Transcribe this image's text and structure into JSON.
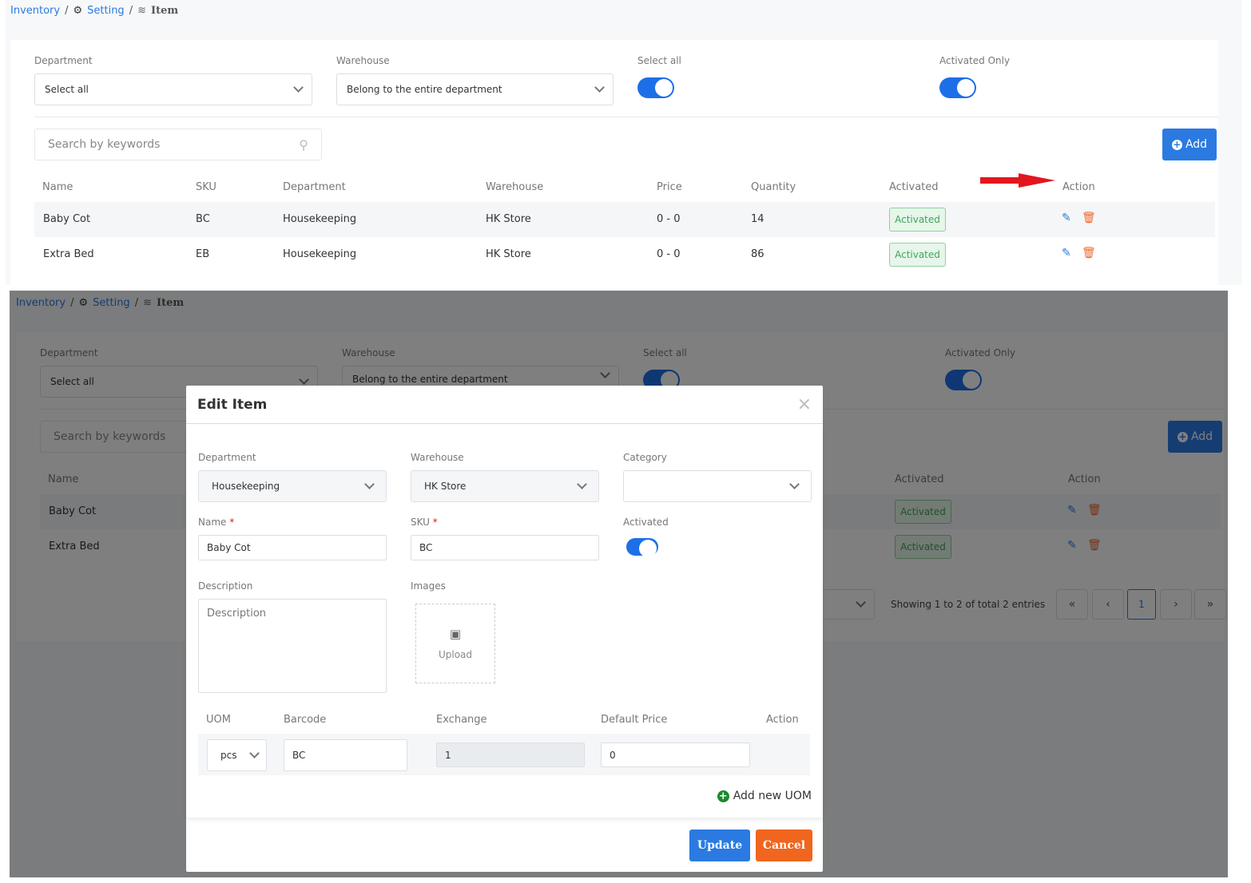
{
  "breadcrumb": {
    "items": [
      "Inventory",
      "Setting",
      "Item"
    ]
  },
  "filters": {
    "department_label": "Department",
    "department_value": "Select all",
    "warehouse_label": "Warehouse",
    "warehouse_value": "Belong to the entire department",
    "select_all_label": "Select all",
    "select_all_on": true,
    "activated_only_label": "Activated Only",
    "activated_only_on": true
  },
  "search": {
    "placeholder": "Search by keywords"
  },
  "toolbar": {
    "add_label": "Add"
  },
  "table": {
    "columns": [
      "Name",
      "SKU",
      "Department",
      "Warehouse",
      "Price",
      "Quantity",
      "Activated",
      "Action"
    ],
    "rows": [
      {
        "name": "Baby Cot",
        "sku": "BC",
        "department": "Housekeeping",
        "warehouse": "HK Store",
        "price": "0 - 0",
        "quantity": "14",
        "activated": "Activated"
      },
      {
        "name": "Extra Bed",
        "sku": "EB",
        "department": "Housekeeping",
        "warehouse": "HK Store",
        "price": "0 - 0",
        "quantity": "86",
        "activated": "Activated"
      }
    ]
  },
  "pagination": {
    "summary": "Showing 1 to 2 of total 2 entries",
    "current_page": "1"
  },
  "modal": {
    "title": "Edit Item",
    "department_label": "Department",
    "department_value": "Housekeeping",
    "warehouse_label": "Warehouse",
    "warehouse_value": "HK Store",
    "category_label": "Category",
    "category_value": "",
    "name_label": "Name",
    "name_value": "Baby Cot",
    "sku_label": "SKU",
    "sku_value": "BC",
    "activated_label": "Activated",
    "activated_on": true,
    "description_label": "Description",
    "description_placeholder": "Description",
    "images_label": "Images",
    "upload_label": "Upload",
    "uom_columns": [
      "UOM",
      "Barcode",
      "Exchange",
      "Default Price",
      "Action"
    ],
    "uom_rows": [
      {
        "uom": "pcs",
        "barcode": "BC",
        "exchange": "1",
        "default_price": "0"
      }
    ],
    "add_uom_label": "Add new UOM",
    "update_label": "Update",
    "cancel_label": "Cancel"
  },
  "colors": {
    "primary": "#2a7ae2",
    "danger": "#f0662c",
    "success": "#3fa55a",
    "annotation_arrow": "#e3161e"
  }
}
